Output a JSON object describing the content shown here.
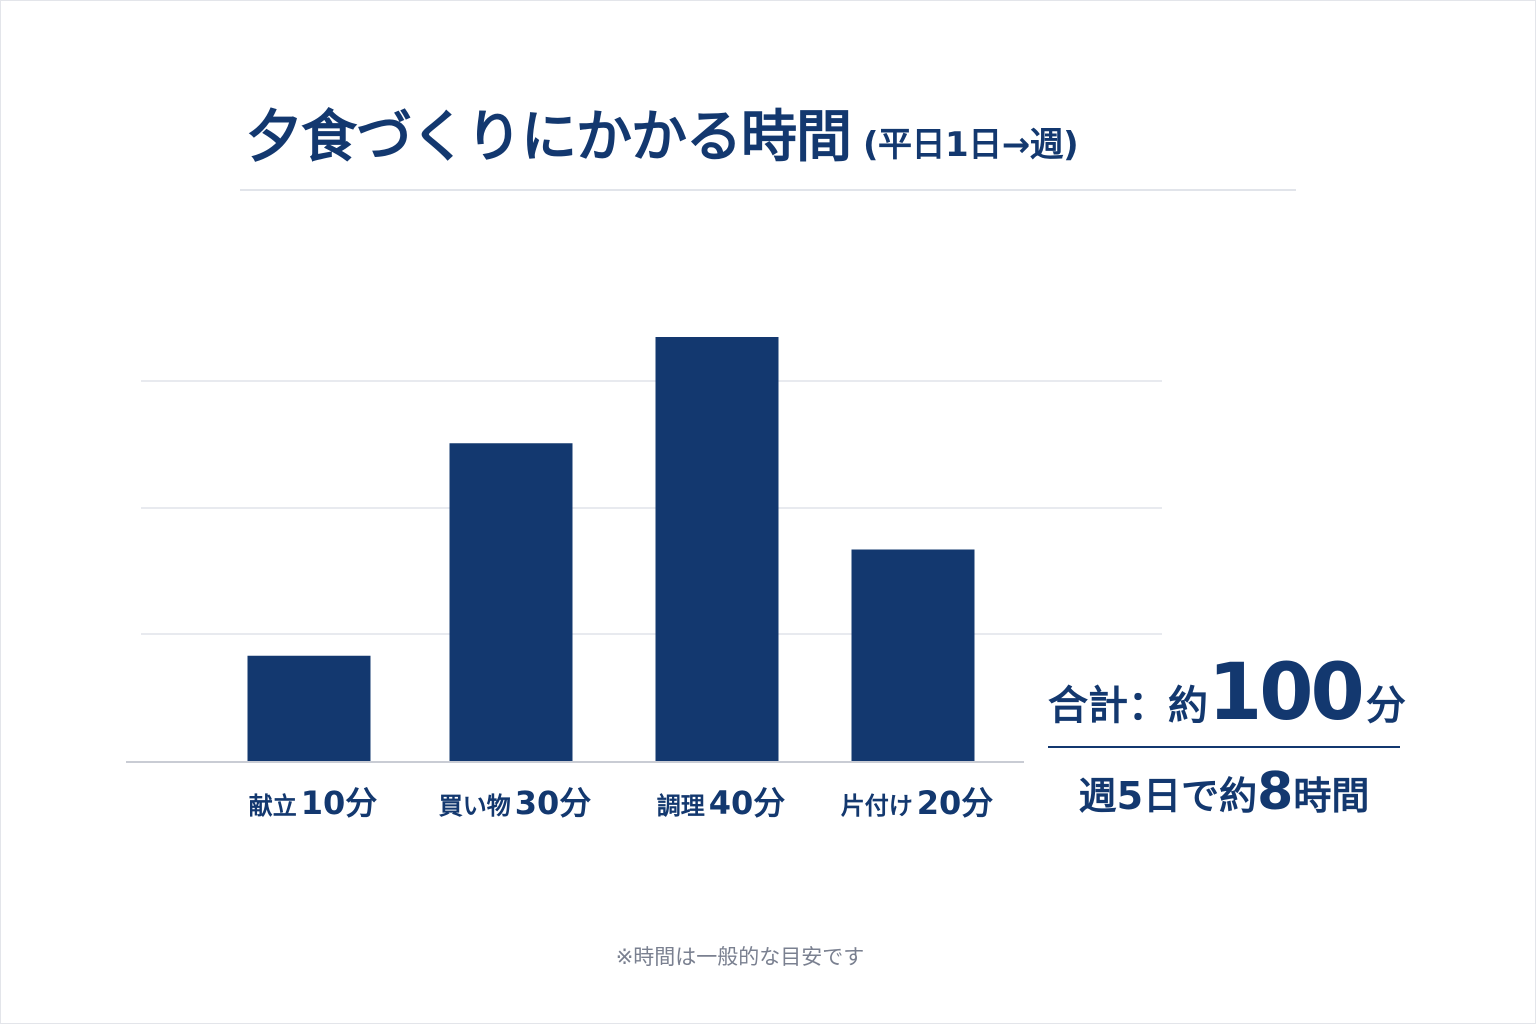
{
  "title": {
    "main": "夕食づくりにかかる時間",
    "sub": "(平日1日→週)"
  },
  "chart_data": {
    "type": "bar",
    "categories": [
      "献立",
      "買い物",
      "調理",
      "片付け"
    ],
    "values": [
      10,
      30,
      40,
      20
    ],
    "value_labels": [
      "10分",
      "30分",
      "40分",
      "20分"
    ],
    "unit": "分",
    "bar_color": "#13386f",
    "grid": true,
    "axes_labels_visible": false
  },
  "summary": {
    "total_label": "合計：約",
    "total_value": "100",
    "total_unit": "分",
    "week_label_a": "週5日で約",
    "week_value": "8",
    "week_label_b": "時間"
  },
  "note": "※時間は一般的な目安です",
  "colors": {
    "accent": "#13386f",
    "gridline": "#e1e4ea",
    "note": "#7a8090"
  }
}
